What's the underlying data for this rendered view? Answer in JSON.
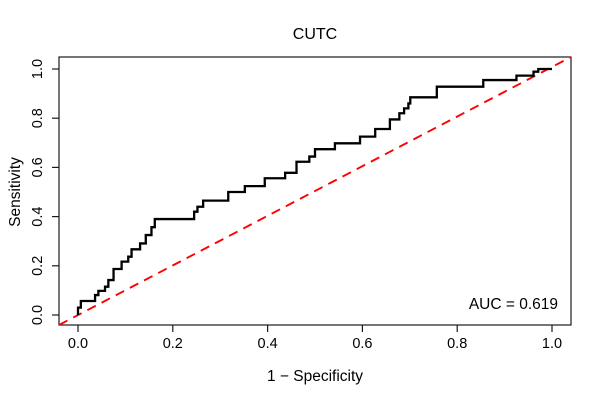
{
  "chart_data": {
    "type": "line",
    "subtype": "roc-step-curve",
    "title": "CUTC",
    "xlabel": "1 − Specificity",
    "ylabel": "Sensitivity",
    "auc": 0.619,
    "auc_text": "AUC = 0.619",
    "xlim": [
      0,
      1
    ],
    "ylim": [
      0,
      1
    ],
    "x_ticks": [
      "0.0",
      "0.2",
      "0.4",
      "0.6",
      "0.8",
      "1.0"
    ],
    "y_ticks": [
      "0.0",
      "0.2",
      "0.4",
      "0.6",
      "0.8",
      "1.0"
    ],
    "grid": false,
    "legend": "none",
    "colors": {
      "background": "#ffffff",
      "curve": "#000000",
      "diagonal": "#ff0000",
      "box": "#1a1a1a",
      "text": "#000000"
    },
    "series": [
      {
        "name": "ROC curve",
        "style": "solid-step",
        "color": "#000000",
        "step_anchors_comment": "each pair = [x end of plateau (1-specificity), sensitivity level]; staircase rises vertically at previous x then runs horizontally to x",
        "step_anchors": [
          [
            0.0,
            0.0
          ],
          [
            0.006,
            0.03
          ],
          [
            0.036,
            0.057
          ],
          [
            0.043,
            0.081
          ],
          [
            0.057,
            0.098
          ],
          [
            0.064,
            0.115
          ],
          [
            0.075,
            0.142
          ],
          [
            0.092,
            0.187
          ],
          [
            0.106,
            0.217
          ],
          [
            0.113,
            0.237
          ],
          [
            0.131,
            0.267
          ],
          [
            0.143,
            0.291
          ],
          [
            0.155,
            0.325
          ],
          [
            0.162,
            0.357
          ],
          [
            0.245,
            0.39
          ],
          [
            0.252,
            0.42
          ],
          [
            0.264,
            0.44
          ],
          [
            0.317,
            0.465
          ],
          [
            0.352,
            0.5
          ],
          [
            0.394,
            0.524
          ],
          [
            0.437,
            0.556
          ],
          [
            0.461,
            0.578
          ],
          [
            0.488,
            0.623
          ],
          [
            0.5,
            0.644
          ],
          [
            0.542,
            0.674
          ],
          [
            0.595,
            0.698
          ],
          [
            0.627,
            0.725
          ],
          [
            0.658,
            0.756
          ],
          [
            0.678,
            0.795
          ],
          [
            0.688,
            0.82
          ],
          [
            0.697,
            0.84
          ],
          [
            0.701,
            0.86
          ],
          [
            0.757,
            0.885
          ],
          [
            0.855,
            0.928
          ],
          [
            0.925,
            0.955
          ],
          [
            0.961,
            0.973
          ],
          [
            0.971,
            0.989
          ],
          [
            1.0,
            1.0
          ]
        ]
      },
      {
        "name": "Chance diagonal",
        "style": "dashed",
        "color": "#ff0000",
        "points": [
          [
            0,
            0
          ],
          [
            1,
            1
          ]
        ]
      }
    ]
  }
}
